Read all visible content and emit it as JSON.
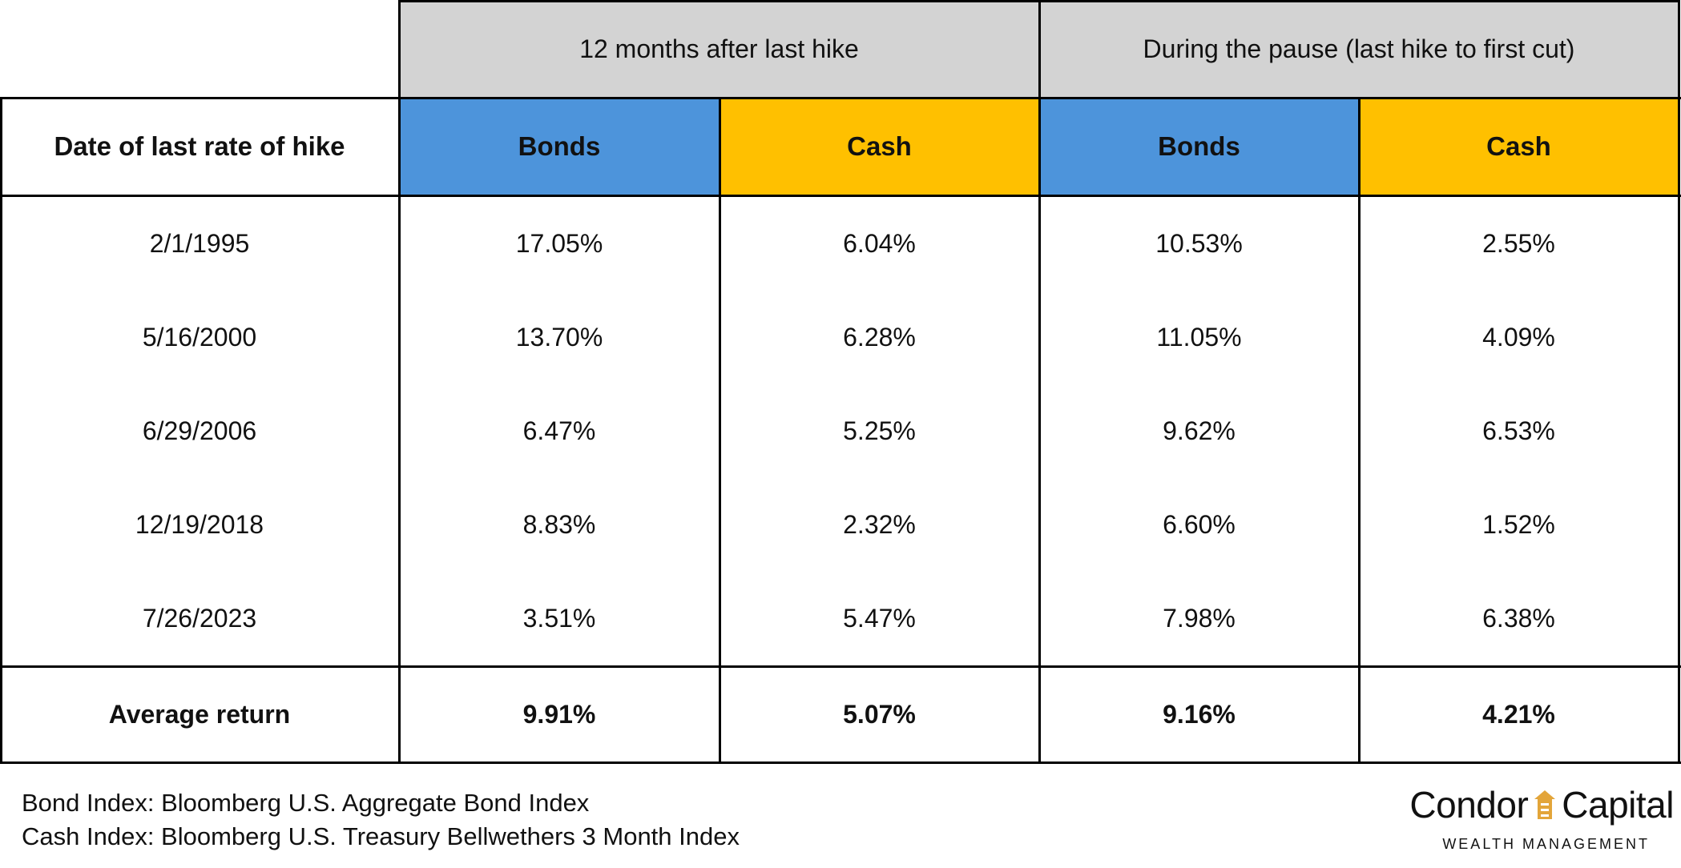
{
  "chart_data": {
    "type": "table",
    "column_groups": [
      {
        "label": "12 months after last hike"
      },
      {
        "label": "During the pause (last hike to first cut)"
      }
    ],
    "columns": [
      {
        "label": "Date of last rate of hike"
      },
      {
        "label": "Bonds",
        "color": "#4d94db"
      },
      {
        "label": "Cash",
        "color": "#ffc000"
      },
      {
        "label": "Bonds",
        "color": "#4d94db"
      },
      {
        "label": "Cash",
        "color": "#ffc000"
      }
    ],
    "rows": [
      [
        "2/1/1995",
        "17.05%",
        "6.04%",
        "10.53%",
        "2.55%"
      ],
      [
        "5/16/2000",
        "13.70%",
        "6.28%",
        "11.05%",
        "4.09%"
      ],
      [
        "6/29/2006",
        "6.47%",
        "5.25%",
        "9.62%",
        "6.53%"
      ],
      [
        "12/19/2018",
        "8.83%",
        "2.32%",
        "6.60%",
        "1.52%"
      ],
      [
        "7/26/2023",
        "3.51%",
        "5.47%",
        "7.98%",
        "6.38%"
      ]
    ],
    "summary_row": [
      "Average return",
      "9.91%",
      "5.07%",
      "9.16%",
      "4.21%"
    ],
    "group_header_color": "#d3d3d3"
  },
  "footnotes": [
    "Bond Index: Bloomberg U.S. Aggregate Bond Index",
    "Cash Index: Bloomberg U.S. Treasury Bellwethers 3 Month Index"
  ],
  "logo": {
    "word1": "Condor",
    "word2": "Capital",
    "tagline": "WEALTH MANAGEMENT",
    "icon": "house-icon",
    "icon_color": "#e3a53a"
  }
}
